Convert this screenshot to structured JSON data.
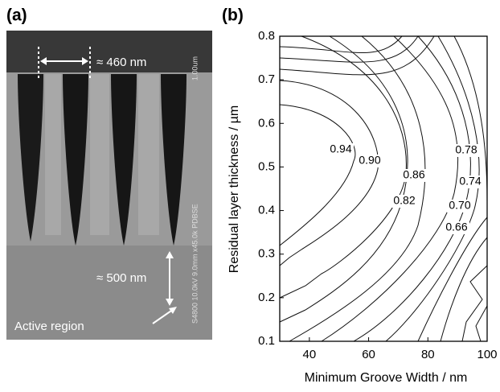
{
  "panel_a": {
    "label": "(a)",
    "width_note": "≈ 460 nm",
    "depth_note": "≈ 500 nm",
    "region_note": "Active region",
    "scale_text": "1.00um",
    "instrument_text": "S4800 10.0kV 9.0mm x45.0k PDBSE"
  },
  "chart_data": {
    "type": "contour",
    "panel_label": "(b)",
    "x_label": "Minimum Groove Width / nm",
    "y_label": "Residual layer thickness / µm",
    "xlim": [
      30,
      100
    ],
    "ylim": [
      0.1,
      0.8
    ],
    "xticks": [
      40,
      60,
      80,
      100
    ],
    "yticks": [
      0.1,
      0.2,
      0.3,
      0.4,
      0.5,
      0.6,
      0.7,
      0.8
    ],
    "levels": [
      0.94,
      0.9,
      0.86,
      0.82,
      0.78,
      0.74,
      0.7,
      0.66
    ],
    "value_labels": [
      "0.94",
      "0.90",
      "0.86",
      "0.82",
      "0.78",
      "0.74",
      "0.70",
      "0.66"
    ],
    "color": "#000000"
  }
}
